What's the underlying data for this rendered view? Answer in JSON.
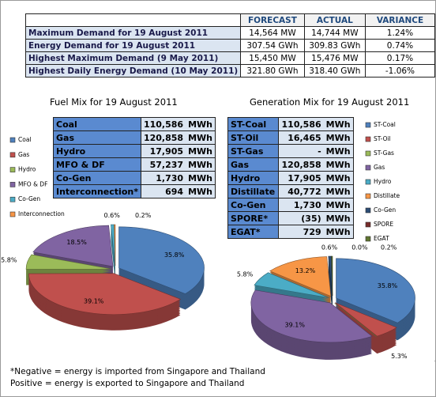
{
  "summary_table": {
    "header": [
      "FORECAST",
      "ACTUAL",
      "VARIANCE"
    ],
    "rows": [
      [
        "Maximum Demand for 19 August 2011",
        "14,564 MW",
        "14,744 MW",
        "1.24%"
      ],
      [
        "Energy Demand for 19 August 2011",
        "307.54 GWh",
        "309.83 GWh",
        "0.74%"
      ],
      [
        "Highest Maximum Demand (9 May 2011)",
        "15,450 MW",
        "15,476 MW",
        "0.17%"
      ],
      [
        "Highest Daily Energy Demand (10 May 2011)",
        "321.80 GWh",
        "318.40 GWh",
        "-1.06%"
      ]
    ]
  },
  "fuel_table": {
    "rows": [
      [
        "Coal",
        "110,586",
        "MWh"
      ],
      [
        "Gas",
        "120,858",
        "MWh"
      ],
      [
        "Hydro",
        "17,905",
        "MWh"
      ],
      [
        "MFO & DF",
        "57,237",
        "MWh"
      ],
      [
        "Co-Gen",
        "1,730",
        "MWh"
      ],
      [
        "Interconnection*",
        "694",
        "MWh"
      ]
    ]
  },
  "generation_table": {
    "rows": [
      [
        "ST-Coal",
        "110,586",
        "MWh"
      ],
      [
        "ST-Oil",
        "16,465",
        "MWh"
      ],
      [
        "ST-Gas",
        "-",
        "MWh"
      ],
      [
        "Gas",
        "120,858",
        "MWh"
      ],
      [
        "Hydro",
        "17,905",
        "MWh"
      ],
      [
        "Distillate",
        "40,772",
        "MWh"
      ],
      [
        "Co-Gen",
        "1,730",
        "MWh"
      ],
      [
        "SPORE*",
        "(35)",
        "MWh"
      ],
      [
        "EGAT*",
        "729",
        "MWh"
      ]
    ]
  },
  "chart_data": [
    {
      "type": "pie",
      "title": "Fuel Mix for 19 August 2011",
      "categories": [
        "Coal",
        "Gas",
        "Hydro",
        "MFO & DF",
        "Co-Gen",
        "Interconnection"
      ],
      "values": [
        35.8,
        39.1,
        5.8,
        18.5,
        0.6,
        0.2
      ],
      "value_labels": [
        "35.8%",
        "39.1%",
        "5.8%",
        "18.5%",
        "0.6%",
        "0.2%"
      ],
      "colors": [
        "#4f81bd",
        "#c0504d",
        "#9bbb59",
        "#8064a2",
        "#4bacc6",
        "#f79646"
      ],
      "legend": "left"
    },
    {
      "type": "pie",
      "title": "Generation Mix for 19 August 2011",
      "categories": [
        "ST-Coal",
        "ST-Oil",
        "ST-Gas",
        "Gas",
        "Hydro",
        "Distillate",
        "Co-Gen",
        "SPORE",
        "EGAT"
      ],
      "values": [
        35.8,
        5.3,
        0.0,
        39.1,
        5.8,
        13.2,
        0.6,
        0.0,
        0.2
      ],
      "value_labels": [
        "35.8%",
        "5.3%",
        "0.0%",
        "39.1%",
        "5.8%",
        "13.2%",
        "0.6%",
        "0.0%",
        "0.2%"
      ],
      "colors": [
        "#4f81bd",
        "#c0504d",
        "#9bbb59",
        "#8064a2",
        "#4bacc6",
        "#f79646",
        "#2c4d75",
        "#772c2a",
        "#5f7530"
      ],
      "legend": "right"
    }
  ],
  "footnote": [
    "*Negative = energy is imported from Singapore and Thailand",
    "Positive = energy is exported to Singapore and Thailand"
  ]
}
